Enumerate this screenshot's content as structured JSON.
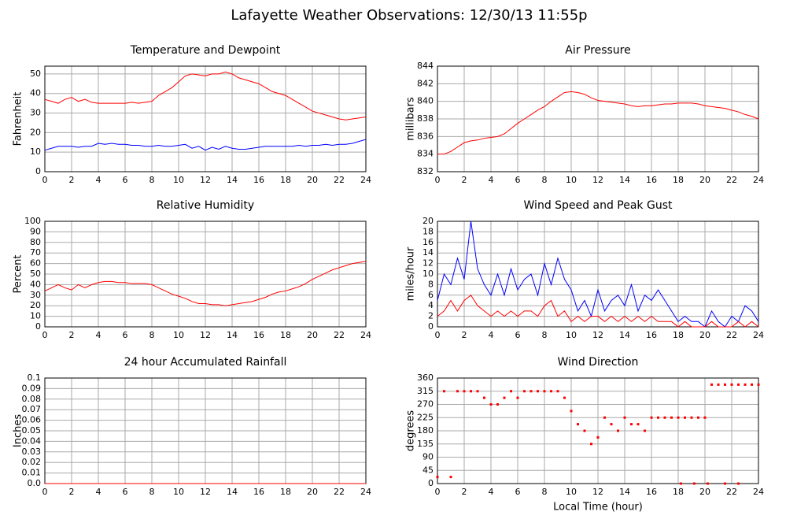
{
  "title": "Lafayette Weather Observations: 12/30/13 11:55p",
  "chart_data": [
    {
      "type": "line",
      "title": "Temperature and Dewpoint",
      "ylabel": "Fahrenheit",
      "grid": true,
      "x": [
        0,
        0.5,
        1,
        1.5,
        2,
        2.5,
        3,
        3.5,
        4,
        4.5,
        5,
        5.5,
        6,
        6.5,
        7,
        7.5,
        8,
        8.5,
        9,
        9.5,
        10,
        10.5,
        11,
        11.5,
        12,
        12.5,
        13,
        13.5,
        14,
        14.5,
        15,
        15.5,
        16,
        16.5,
        17,
        17.5,
        18,
        18.5,
        19,
        19.5,
        20,
        20.5,
        21,
        21.5,
        22,
        22.5,
        23,
        23.5,
        24
      ],
      "xlim": [
        0,
        24
      ],
      "xticks": [
        0,
        2,
        4,
        6,
        8,
        10,
        12,
        14,
        16,
        18,
        20,
        22,
        24
      ],
      "ylim": [
        0,
        54
      ],
      "yticks": [
        0,
        10,
        20,
        30,
        40,
        50
      ],
      "series": [
        {
          "color": "#ff0000",
          "values": [
            37,
            36,
            35,
            37,
            38,
            36,
            37,
            35.5,
            35,
            35,
            35,
            35,
            35,
            35.5,
            35,
            35.5,
            36,
            39,
            41,
            43,
            46,
            49,
            50,
            49.5,
            49,
            50,
            50,
            51,
            50,
            48,
            47,
            46,
            45,
            43,
            41,
            40,
            39,
            37,
            35,
            33,
            31,
            30,
            29,
            28,
            27,
            26.5,
            27,
            27.5,
            28
          ]
        },
        {
          "color": "#0000ff",
          "values": [
            11,
            12,
            13,
            13,
            13,
            12.5,
            13,
            13,
            14.5,
            14,
            14.5,
            14,
            14,
            13.5,
            13.5,
            13,
            13,
            13.5,
            13,
            13,
            13.5,
            14,
            12,
            13,
            11,
            12.5,
            11.5,
            13,
            12,
            11.5,
            11.5,
            12,
            12.5,
            13,
            13,
            13,
            13,
            13,
            13.5,
            13,
            13.5,
            13.5,
            14,
            13.5,
            14,
            14,
            14.5,
            15.5,
            16.5
          ]
        }
      ]
    },
    {
      "type": "line",
      "title": "Air Pressure",
      "ylabel": "millibars",
      "grid": true,
      "x": [
        0,
        0.5,
        1,
        1.5,
        2,
        2.5,
        3,
        3.5,
        4,
        4.5,
        5,
        5.5,
        6,
        6.5,
        7,
        7.5,
        8,
        8.5,
        9,
        9.5,
        10,
        10.5,
        11,
        11.5,
        12,
        12.5,
        13,
        13.5,
        14,
        14.5,
        15,
        15.5,
        16,
        16.5,
        17,
        17.5,
        18,
        18.5,
        19,
        19.5,
        20,
        20.5,
        21,
        21.5,
        22,
        22.5,
        23,
        23.5,
        24
      ],
      "xlim": [
        0,
        24
      ],
      "xticks": [
        0,
        2,
        4,
        6,
        8,
        10,
        12,
        14,
        16,
        18,
        20,
        22,
        24
      ],
      "ylim": [
        832,
        844
      ],
      "yticks": [
        832,
        834,
        836,
        838,
        840,
        842,
        844
      ],
      "series": [
        {
          "color": "#ff0000",
          "values": [
            834,
            834,
            834.3,
            834.8,
            835.3,
            835.5,
            835.6,
            835.8,
            835.9,
            836,
            836.3,
            836.9,
            837.5,
            838,
            838.5,
            839,
            839.4,
            840,
            840.5,
            841,
            841.1,
            841,
            840.8,
            840.4,
            840.1,
            840,
            839.9,
            839.8,
            839.7,
            839.5,
            839.4,
            839.5,
            839.5,
            839.6,
            839.7,
            839.7,
            839.8,
            839.8,
            839.8,
            839.7,
            839.5,
            839.4,
            839.3,
            839.2,
            839,
            838.8,
            838.5,
            838.3,
            838
          ]
        }
      ]
    },
    {
      "type": "line",
      "title": "Relative Humidity",
      "ylabel": "Percent",
      "grid": true,
      "x": [
        0,
        0.5,
        1,
        1.5,
        2,
        2.5,
        3,
        3.5,
        4,
        4.5,
        5,
        5.5,
        6,
        6.5,
        7,
        7.5,
        8,
        8.5,
        9,
        9.5,
        10,
        10.5,
        11,
        11.5,
        12,
        12.5,
        13,
        13.5,
        14,
        14.5,
        15,
        15.5,
        16,
        16.5,
        17,
        17.5,
        18,
        18.5,
        19,
        19.5,
        20,
        20.5,
        21,
        21.5,
        22,
        22.5,
        23,
        23.5,
        24
      ],
      "xlim": [
        0,
        24
      ],
      "xticks": [
        0,
        2,
        4,
        6,
        8,
        10,
        12,
        14,
        16,
        18,
        20,
        22,
        24
      ],
      "ylim": [
        0,
        100
      ],
      "yticks": [
        0,
        10,
        20,
        30,
        40,
        50,
        60,
        70,
        80,
        90,
        100
      ],
      "series": [
        {
          "color": "#ff0000",
          "values": [
            34,
            37,
            40,
            37,
            35,
            40,
            37,
            40,
            42,
            43,
            43,
            42,
            42,
            41,
            41,
            41,
            40,
            37,
            34,
            31,
            29,
            27,
            24,
            22,
            22,
            21,
            21,
            20,
            21,
            22,
            23,
            24,
            26,
            28,
            31,
            33,
            34,
            36,
            38,
            41,
            45,
            48,
            51,
            54,
            56,
            58,
            60,
            61,
            62
          ]
        }
      ]
    },
    {
      "type": "line",
      "title": "Wind Speed and Peak Gust",
      "ylabel": "miles/hour",
      "grid": true,
      "x": [
        0,
        0.5,
        1,
        1.5,
        2,
        2.5,
        3,
        3.5,
        4,
        4.5,
        5,
        5.5,
        6,
        6.5,
        7,
        7.5,
        8,
        8.5,
        9,
        9.5,
        10,
        10.5,
        11,
        11.5,
        12,
        12.5,
        13,
        13.5,
        14,
        14.5,
        15,
        15.5,
        16,
        16.5,
        17,
        17.5,
        18,
        18.5,
        19,
        19.5,
        20,
        20.5,
        21,
        21.5,
        22,
        22.5,
        23,
        23.5,
        24
      ],
      "xlim": [
        0,
        24
      ],
      "xticks": [
        0,
        2,
        4,
        6,
        8,
        10,
        12,
        14,
        16,
        18,
        20,
        22,
        24
      ],
      "ylim": [
        0,
        20
      ],
      "yticks": [
        0,
        2,
        4,
        6,
        8,
        10,
        12,
        14,
        16,
        18,
        20
      ],
      "series": [
        {
          "color": "#0000ff",
          "values": [
            5,
            10,
            8,
            13,
            9,
            20,
            11,
            8,
            6,
            10,
            6,
            11,
            7,
            9,
            10,
            6,
            12,
            8,
            13,
            9,
            7,
            3,
            5,
            2,
            7,
            3,
            5,
            6,
            4,
            8,
            3,
            6,
            5,
            7,
            5,
            3,
            1,
            2,
            1,
            1,
            0,
            3,
            1,
            0,
            2,
            1,
            4,
            3,
            1
          ]
        },
        {
          "color": "#ff0000",
          "values": [
            2,
            3,
            5,
            3,
            5,
            6,
            4,
            3,
            2,
            3,
            2,
            3,
            2,
            3,
            3,
            2,
            4,
            5,
            2,
            3,
            1,
            2,
            1,
            2,
            2,
            1,
            2,
            1,
            2,
            1,
            2,
            1,
            2,
            1,
            1,
            1,
            0,
            1,
            0,
            0,
            0,
            1,
            0,
            0,
            0,
            1,
            0,
            1,
            0
          ]
        }
      ]
    },
    {
      "type": "line",
      "title": "24 hour Accumulated Rainfall",
      "ylabel": "Inches",
      "grid": true,
      "x": [
        0,
        24
      ],
      "xlim": [
        0,
        24
      ],
      "xticks": [
        0,
        2,
        4,
        6,
        8,
        10,
        12,
        14,
        16,
        18,
        20,
        22,
        24
      ],
      "ylim": [
        0,
        0.1
      ],
      "yticks": [
        {
          "value": 0,
          "label": "0.0"
        },
        0.01,
        0.02,
        0.03,
        0.04,
        0.05,
        0.06,
        0.07,
        0.08,
        0.09,
        {
          "value": 0.1,
          "label": "0.1"
        }
      ],
      "series": [
        {
          "color": "#ff0000",
          "values": [
            0,
            0
          ]
        }
      ]
    },
    {
      "type": "scatter",
      "title": "Wind Direction",
      "ylabel": "degrees",
      "xlabel": "Local Time (hour)",
      "grid": true,
      "x": [
        0,
        0.5,
        1,
        1.5,
        2,
        2.5,
        3,
        3.5,
        4,
        4.5,
        5,
        5.5,
        6,
        6.5,
        7,
        7.5,
        8,
        8.5,
        9,
        9.5,
        10,
        10.5,
        11,
        11.5,
        12,
        12.5,
        13,
        13.5,
        14,
        14.5,
        15,
        15.5,
        16,
        16.5,
        17,
        17.5,
        18,
        18.5,
        19,
        19.5,
        20,
        20.5,
        21,
        21.5,
        22,
        22.5,
        23,
        23.5,
        24,
        18.2,
        19.2,
        20.2,
        21.5,
        22.5
      ],
      "xlim": [
        0,
        24
      ],
      "xticks": [
        0,
        2,
        4,
        6,
        8,
        10,
        12,
        14,
        16,
        18,
        20,
        22,
        24
      ],
      "ylim": [
        0,
        360
      ],
      "yticks": [
        0,
        45,
        90,
        135,
        180,
        225,
        270,
        315,
        360
      ],
      "series": [
        {
          "color": "#ff0000",
          "values": [
            22.5,
            315,
            22.5,
            315,
            315,
            315,
            315,
            292.5,
            270,
            270,
            292.5,
            315,
            292.5,
            315,
            315,
            315,
            315,
            315,
            315,
            292.5,
            247.5,
            202.5,
            180,
            135,
            157.5,
            225,
            202.5,
            180,
            225,
            202.5,
            202.5,
            180,
            225,
            225,
            225,
            225,
            225,
            225,
            225,
            225,
            225,
            337.5,
            337.5,
            337.5,
            337.5,
            337.5,
            337.5,
            337.5,
            337.5,
            0,
            0,
            0,
            0,
            0
          ]
        }
      ]
    }
  ]
}
